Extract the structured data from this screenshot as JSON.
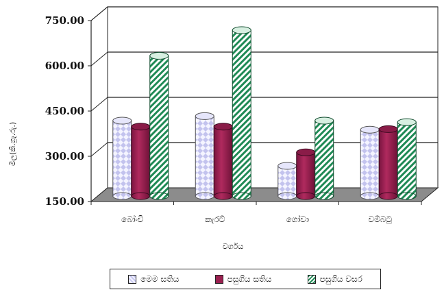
{
  "chart_data": {
    "type": "bar",
    "title": "",
    "xlabel": "වර්ගය",
    "ylabel": "මිල(කි.ග්‍රෑ.රු.)",
    "categories": [
      "බෝංචි",
      "කැරට්",
      "ගෝවා",
      "වම්බටු"
    ],
    "series": [
      {
        "name": "මෙම සතිය",
        "values": [
          400,
          415,
          250,
          370
        ]
      },
      {
        "name": "පසුගිය සතිය",
        "values": [
          380,
          380,
          295,
          372
        ]
      },
      {
        "name": "පසුගිය වසර",
        "values": [
          615,
          700,
          400,
          395
        ]
      }
    ],
    "ylim": [
      150,
      750
    ],
    "yticks": [
      "150.00",
      "300.00",
      "450.00",
      "600.00",
      "750.00"
    ],
    "ytick_values": [
      150,
      300,
      450,
      600,
      750
    ],
    "grid": true,
    "legend_position": "bottom",
    "colors": [
      "#c9c9f2",
      "#9a2050",
      "#1f8a55"
    ]
  }
}
